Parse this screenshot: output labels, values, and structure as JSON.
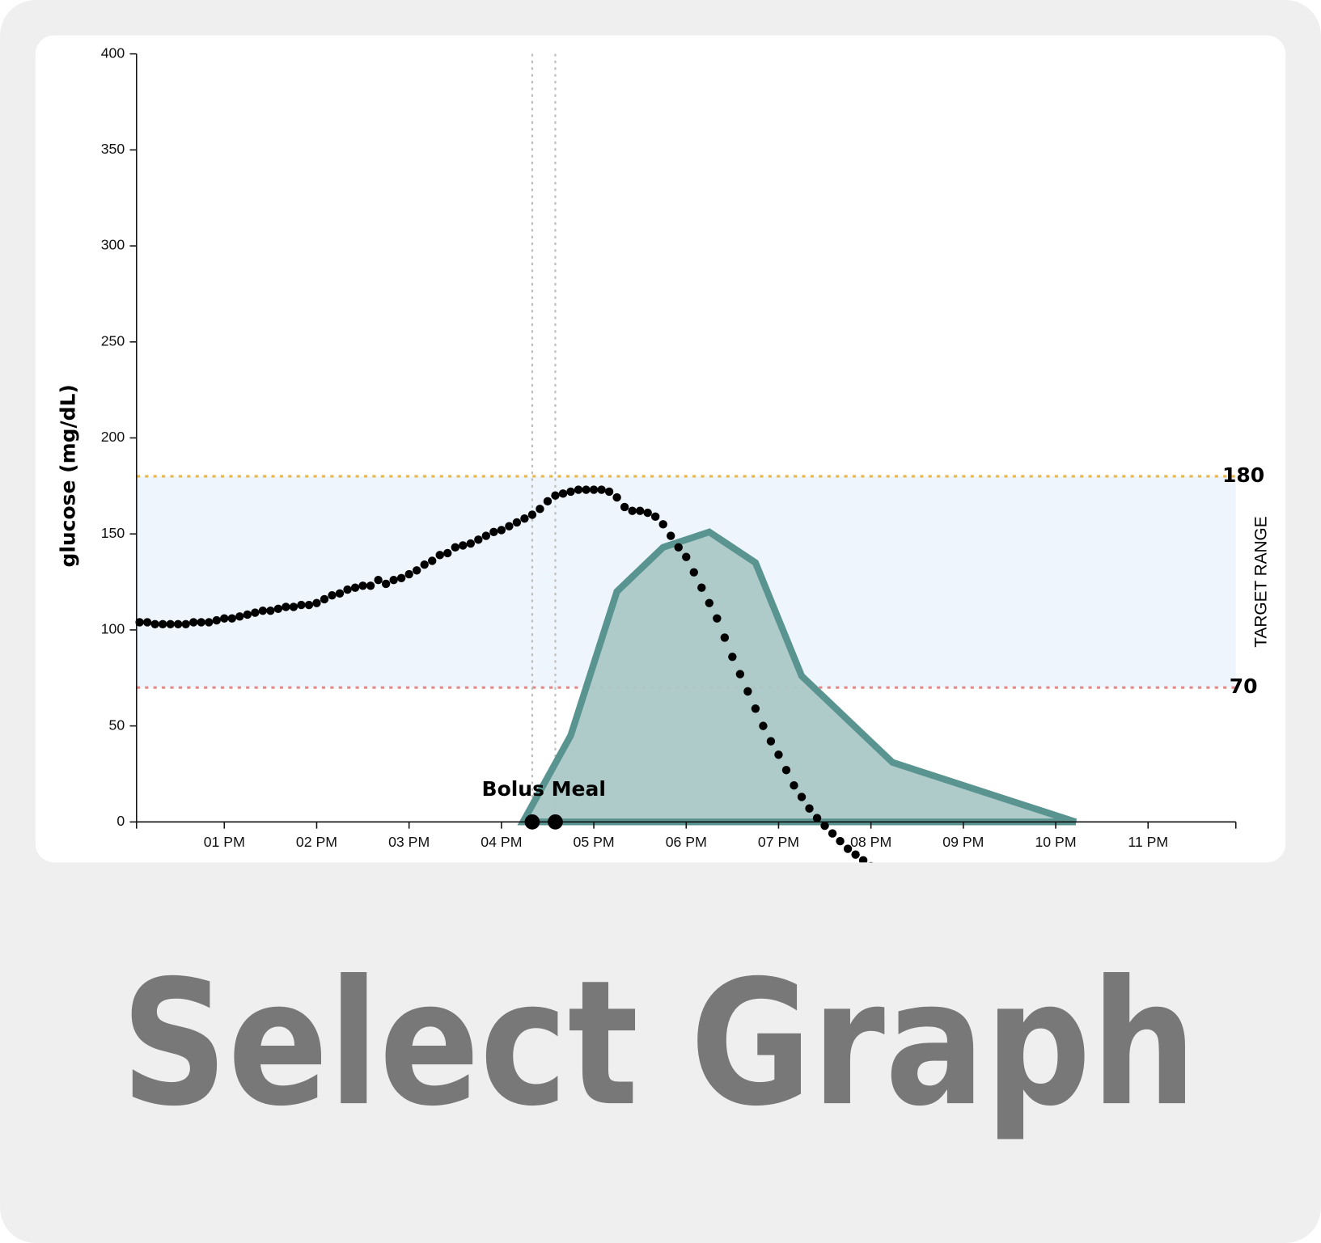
{
  "chart_data": {
    "type": "glucose",
    "y_label": "glucose (mg/dL)",
    "xlim": [
      723,
      1437
    ],
    "xticks": [
      {
        "value": 780,
        "label": "01 PM"
      },
      {
        "value": 840,
        "label": "02 PM"
      },
      {
        "value": 900,
        "label": "03 PM"
      },
      {
        "value": 960,
        "label": "04 PM"
      },
      {
        "value": 1020,
        "label": "05 PM"
      },
      {
        "value": 1080,
        "label": "06 PM"
      },
      {
        "value": 1140,
        "label": "07 PM"
      },
      {
        "value": 1200,
        "label": "08 PM"
      },
      {
        "value": 1260,
        "label": "09 PM"
      },
      {
        "value": 1320,
        "label": "10 PM"
      },
      {
        "value": 1380,
        "label": "11 PM"
      }
    ],
    "ylim": [
      0,
      400
    ],
    "yticks": [
      0,
      50,
      100,
      150,
      200,
      250,
      300,
      350,
      400
    ],
    "target_range": {
      "low": 70,
      "high": 180,
      "label": "TARGET RANGE",
      "color": "#eef5fd",
      "low_color": "#e58a8a",
      "high_color": "#e9b84c"
    },
    "series": [
      {
        "type": "scatter",
        "color": "#000000",
        "x": [
          725,
          730,
          735,
          740,
          745,
          750,
          755,
          760,
          765,
          770,
          775,
          780,
          785,
          790,
          795,
          800,
          805,
          810,
          815,
          820,
          825,
          830,
          835,
          840,
          845,
          850,
          855,
          860,
          865,
          870,
          875,
          880,
          885,
          890,
          895,
          900,
          905,
          910,
          915,
          920,
          925,
          930,
          935,
          940,
          945,
          950,
          955,
          960,
          965,
          970,
          975,
          980,
          985,
          990,
          995,
          1000,
          1005,
          1010,
          1015,
          1020,
          1025,
          1030,
          1035,
          1040,
          1045,
          1050,
          1055,
          1060,
          1065,
          1070,
          1075,
          1080,
          1085,
          1090,
          1095,
          1100,
          1105,
          1110,
          1115,
          1120,
          1125,
          1130,
          1135,
          1140,
          1145,
          1150,
          1155,
          1160,
          1165,
          1170,
          1175,
          1180,
          1185,
          1190,
          1195,
          1200
        ],
        "values": [
          104,
          104,
          103,
          103,
          103,
          103,
          103,
          104,
          104,
          104,
          105,
          106,
          106,
          107,
          108,
          109,
          110,
          110,
          111,
          112,
          112,
          113,
          113,
          114,
          116,
          118,
          119,
          121,
          122,
          123,
          123,
          126,
          124,
          126,
          127,
          129,
          131,
          134,
          136,
          139,
          140,
          143,
          144,
          145,
          147,
          149,
          151,
          152,
          154,
          156,
          158,
          160,
          163,
          167,
          170,
          171,
          172,
          173,
          173,
          173,
          173,
          172,
          169,
          164,
          162,
          162,
          161,
          159,
          155,
          149,
          143,
          138,
          130,
          122,
          114,
          106,
          96,
          86,
          77,
          68,
          59,
          50,
          42,
          35,
          27,
          19,
          13,
          7,
          2,
          -2,
          -6,
          -10,
          -14,
          -17,
          -20,
          -23
        ]
      },
      {
        "type": "area",
        "color": "#5a9490",
        "fill": "#aac8c6",
        "x": [
          974,
          1005,
          1035,
          1065,
          1095,
          1125,
          1155,
          1214,
          1333
        ],
        "values": [
          0,
          45,
          120,
          143,
          151,
          135,
          76,
          31,
          0
        ]
      }
    ],
    "events": {
      "label": "Bolus Meal",
      "x": [
        980,
        995
      ]
    }
  },
  "button": {
    "label": "Select Graph"
  }
}
